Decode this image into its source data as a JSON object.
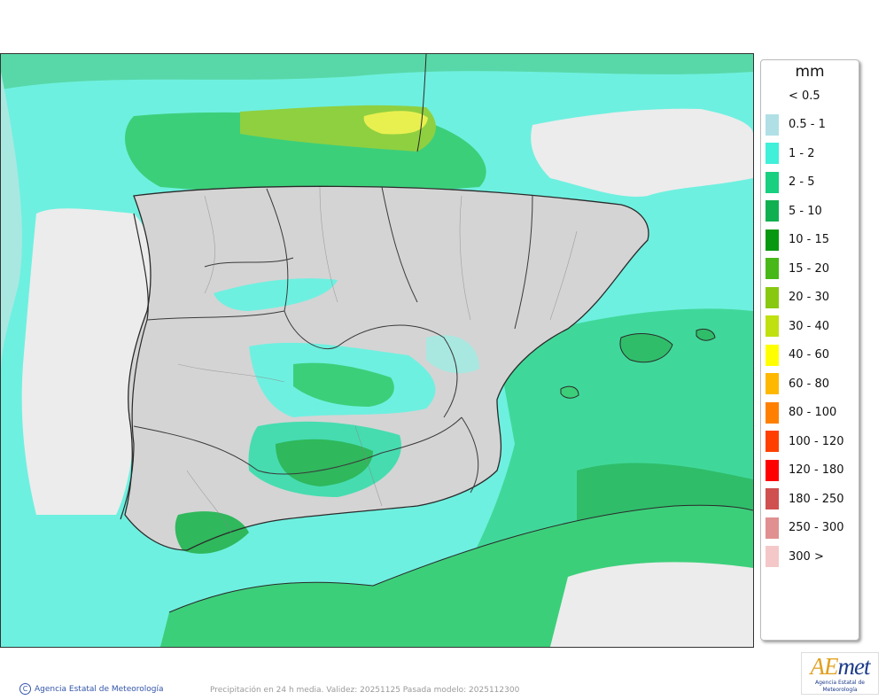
{
  "legend": {
    "title": "mm",
    "items": [
      {
        "label": "< 0.5",
        "color": ""
      },
      {
        "label": "0.5 - 1",
        "color": "#b0e0e6"
      },
      {
        "label": "1 - 2",
        "color": "#40f0d8"
      },
      {
        "label": "2 - 5",
        "color": "#18d080"
      },
      {
        "label": "5 - 10",
        "color": "#10b050"
      },
      {
        "label": "10 - 15",
        "color": "#089810"
      },
      {
        "label": "15 - 20",
        "color": "#48b818"
      },
      {
        "label": "20 - 30",
        "color": "#88c810"
      },
      {
        "label": "30 - 40",
        "color": "#c0e010"
      },
      {
        "label": "40 - 60",
        "color": "#ffff00"
      },
      {
        "label": "60 - 80",
        "color": "#ffb800"
      },
      {
        "label": "80 - 100",
        "color": "#ff8000"
      },
      {
        "label": "100 - 120",
        "color": "#ff4000"
      },
      {
        "label": "120 - 180",
        "color": "#ff0000"
      },
      {
        "label": "180 - 250",
        "color": "#d05050"
      },
      {
        "label": "250 - 300",
        "color": "#e09090"
      },
      {
        "label": "300 >",
        "color": "#f4c8c8"
      }
    ]
  },
  "footer": {
    "agency": "Agencia Estatal de Meteorología",
    "caption": "Precipitación en 24 h media. Validez: 20251125 Pasada modelo: 2025112300"
  },
  "logo": {
    "word_ae": "AE",
    "word_met": "met",
    "subtitle": "Agencia Estatal de Meteorología"
  },
  "map_colors": {
    "sea_low": "#6ef0e0",
    "sea_mid": "#40dca0",
    "sea_high": "#3cc878",
    "land_bg": "#d4d4d4",
    "outside_land": "#ececec",
    "border": "#2a2a2a"
  }
}
